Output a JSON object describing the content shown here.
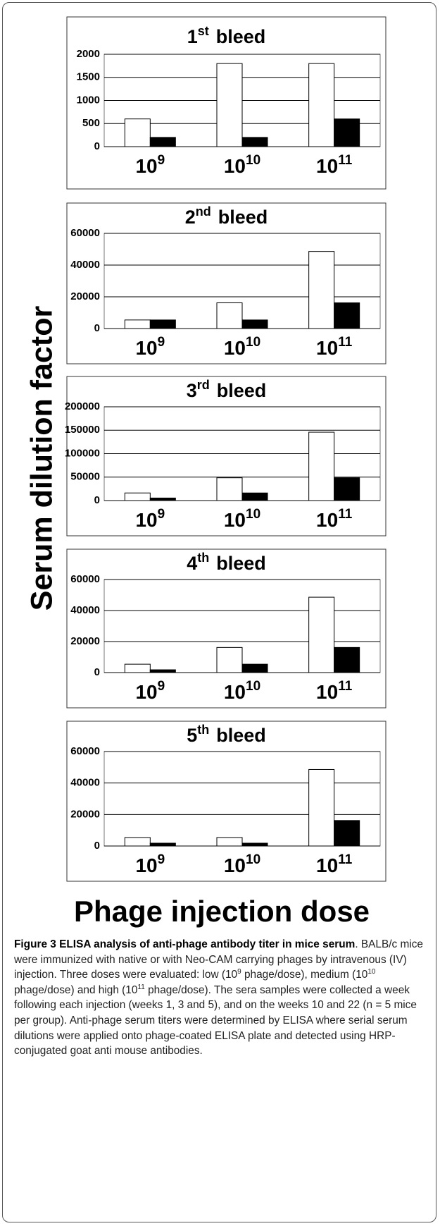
{
  "ylabel": "Serum dilution factor",
  "xlabel": "Phage injection dose",
  "chart_data": [
    {
      "type": "bar",
      "title_number": "1",
      "title_suffix": "st",
      "title": "bleed",
      "categories": [
        {
          "base": "10",
          "exponent": "9"
        },
        {
          "base": "10",
          "exponent": "10"
        },
        {
          "base": "10",
          "exponent": "11"
        }
      ],
      "series": [
        {
          "color": "#ffffff",
          "values": [
            600,
            1800,
            1800
          ]
        },
        {
          "color": "#000000",
          "values": [
            200,
            200,
            600
          ]
        }
      ],
      "ylim": [
        0,
        2000
      ],
      "yticks": [
        0,
        500,
        1000,
        1500,
        2000
      ],
      "grid": true
    },
    {
      "type": "bar",
      "title_number": "2",
      "title_suffix": "nd",
      "title": "bleed",
      "categories": [
        {
          "base": "10",
          "exponent": "9"
        },
        {
          "base": "10",
          "exponent": "10"
        },
        {
          "base": "10",
          "exponent": "11"
        }
      ],
      "series": [
        {
          "color": "#ffffff",
          "values": [
            5400,
            16200,
            48600
          ]
        },
        {
          "color": "#000000",
          "values": [
            5400,
            5400,
            16200
          ]
        }
      ],
      "ylim": [
        0,
        60000
      ],
      "yticks": [
        0,
        20000,
        40000,
        60000
      ],
      "grid": true
    },
    {
      "type": "bar",
      "title_number": "3",
      "title_suffix": "rd",
      "title": "bleed",
      "categories": [
        {
          "base": "10",
          "exponent": "9"
        },
        {
          "base": "10",
          "exponent": "10"
        },
        {
          "base": "10",
          "exponent": "11"
        }
      ],
      "series": [
        {
          "color": "#ffffff",
          "values": [
            16200,
            48600,
            145800
          ]
        },
        {
          "color": "#000000",
          "values": [
            5400,
            16200,
            48600
          ]
        }
      ],
      "ylim": [
        0,
        200000
      ],
      "yticks": [
        0,
        50000,
        100000,
        150000,
        200000
      ],
      "grid": true
    },
    {
      "type": "bar",
      "title_number": "4",
      "title_suffix": "th",
      "title": "bleed",
      "categories": [
        {
          "base": "10",
          "exponent": "9"
        },
        {
          "base": "10",
          "exponent": "10"
        },
        {
          "base": "10",
          "exponent": "11"
        }
      ],
      "series": [
        {
          "color": "#ffffff",
          "values": [
            5400,
            16200,
            48600
          ]
        },
        {
          "color": "#000000",
          "values": [
            1800,
            5400,
            16200
          ]
        }
      ],
      "ylim": [
        0,
        60000
      ],
      "yticks": [
        0,
        20000,
        40000,
        60000
      ],
      "grid": true
    },
    {
      "type": "bar",
      "title_number": "5",
      "title_suffix": "th",
      "title": "bleed",
      "categories": [
        {
          "base": "10",
          "exponent": "9"
        },
        {
          "base": "10",
          "exponent": "10"
        },
        {
          "base": "10",
          "exponent": "11"
        }
      ],
      "series": [
        {
          "color": "#ffffff",
          "values": [
            5400,
            5400,
            48600
          ]
        },
        {
          "color": "#000000",
          "values": [
            1800,
            1800,
            16200
          ]
        }
      ],
      "ylim": [
        0,
        60000
      ],
      "yticks": [
        0,
        20000,
        40000,
        60000
      ],
      "grid": true
    }
  ],
  "caption": {
    "title": "Figure 3 ELISA analysis of anti-phage antibody titer in mice serum",
    "segments": [
      ". BALB/c mice were immunized with native or with Neo-CAM carrying phages by intravenous (IV) injection. Three doses were evaluated: low (10",
      "9",
      " phage/dose), medium (10",
      "10",
      " phage/dose) and high (10",
      "11",
      " phage/dose). The sera samples were collected a week following each injection (weeks 1, 3 and 5), and on the weeks 10 and 22 (n = 5 mice per group). Anti-phage serum titers were determined by ELISA where serial serum dilutions were applied onto phage-coated ELISA plate and detected using HRP-conjugated goat anti mouse antibodies."
    ]
  }
}
